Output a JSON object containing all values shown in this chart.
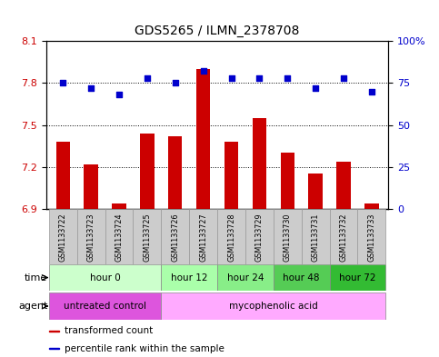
{
  "title": "GDS5265 / ILMN_2378708",
  "samples": [
    "GSM1133722",
    "GSM1133723",
    "GSM1133724",
    "GSM1133725",
    "GSM1133726",
    "GSM1133727",
    "GSM1133728",
    "GSM1133729",
    "GSM1133730",
    "GSM1133731",
    "GSM1133732",
    "GSM1133733"
  ],
  "bar_values": [
    7.38,
    7.22,
    6.94,
    7.44,
    7.42,
    7.9,
    7.38,
    7.55,
    7.3,
    7.15,
    7.24,
    6.94
  ],
  "scatter_values": [
    75,
    72,
    68,
    78,
    75,
    82,
    78,
    78,
    78,
    72,
    78,
    70
  ],
  "bar_color": "#cc0000",
  "scatter_color": "#0000cc",
  "ylim_left": [
    6.9,
    8.1
  ],
  "ylim_right": [
    0,
    100
  ],
  "yticks_left": [
    6.9,
    7.2,
    7.5,
    7.8,
    8.1
  ],
  "yticks_right": [
    0,
    25,
    50,
    75,
    100
  ],
  "ytick_labels_right": [
    "0",
    "25",
    "50",
    "75",
    "100%"
  ],
  "hlines": [
    7.2,
    7.5,
    7.8
  ],
  "time_groups": [
    {
      "label": "hour 0",
      "start": 0,
      "end": 3,
      "color": "#ccffcc"
    },
    {
      "label": "hour 12",
      "start": 4,
      "end": 5,
      "color": "#aaffaa"
    },
    {
      "label": "hour 24",
      "start": 6,
      "end": 7,
      "color": "#88ee88"
    },
    {
      "label": "hour 48",
      "start": 8,
      "end": 9,
      "color": "#55cc55"
    },
    {
      "label": "hour 72",
      "start": 10,
      "end": 11,
      "color": "#33bb33"
    }
  ],
  "agent_groups": [
    {
      "label": "untreated control",
      "start": 0,
      "end": 3,
      "color": "#dd55dd"
    },
    {
      "label": "mycophenolic acid",
      "start": 4,
      "end": 11,
      "color": "#ffaaff"
    }
  ],
  "legend_items": [
    {
      "label": "transformed count",
      "color": "#cc0000"
    },
    {
      "label": "percentile rank within the sample",
      "color": "#0000cc"
    }
  ],
  "bar_base": 6.9,
  "background_color": "#ffffff",
  "tick_label_color_left": "#cc0000",
  "tick_label_color_right": "#0000cc"
}
